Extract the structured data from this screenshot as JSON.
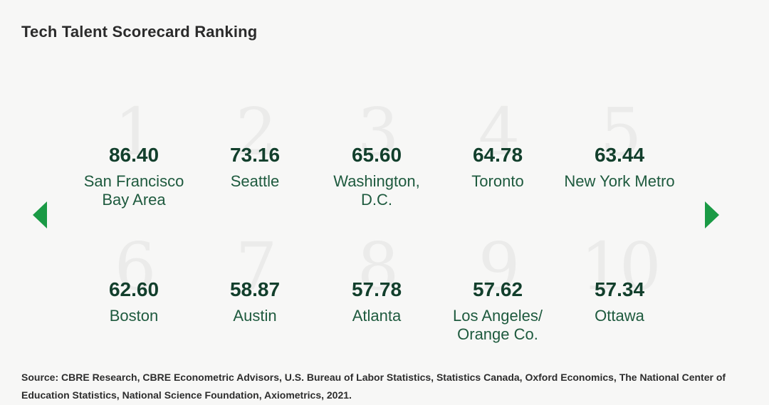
{
  "title": "Tech Talent Scorecard Ranking",
  "colors": {
    "accent": "#1a9a45",
    "score": "#123f2c",
    "city": "#1e5a3e",
    "rank_numeral": "#ebebea",
    "background": "#f7f7f6"
  },
  "nav": {
    "prev_icon": "chevron-left-icon",
    "next_icon": "chevron-right-icon"
  },
  "rankings": [
    {
      "rank": "1",
      "score": "86.40",
      "city": "San Francisco\nBay Area"
    },
    {
      "rank": "2",
      "score": "73.16",
      "city": "Seattle"
    },
    {
      "rank": "3",
      "score": "65.60",
      "city": "Washington,\nD.C."
    },
    {
      "rank": "4",
      "score": "64.78",
      "city": "Toronto"
    },
    {
      "rank": "5",
      "score": "63.44",
      "city": "New York Metro"
    },
    {
      "rank": "6",
      "score": "62.60",
      "city": "Boston"
    },
    {
      "rank": "7",
      "score": "58.87",
      "city": "Austin"
    },
    {
      "rank": "8",
      "score": "57.78",
      "city": "Atlanta"
    },
    {
      "rank": "9",
      "score": "57.62",
      "city": "Los Angeles/\nOrange Co."
    },
    {
      "rank": "10",
      "score": "57.34",
      "city": "Ottawa"
    }
  ],
  "source": "Source: CBRE Research, CBRE Econometric Advisors, U.S. Bureau of Labor Statistics, Statistics Canada, Oxford Economics, The National Center of Education Statistics, National Science Foundation, Axiometrics, 2021."
}
